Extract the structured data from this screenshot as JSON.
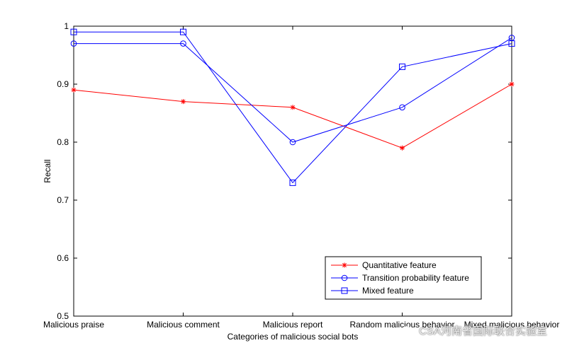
{
  "chart_data": {
    "type": "line",
    "title": "",
    "xlabel": "Categories of malicious social bots",
    "ylabel": "Recall",
    "categories": [
      "Malicious praise",
      "Malicious comment",
      "Malicious report",
      "Random malicious behavior",
      "Mixed malicious behavior"
    ],
    "ylim": [
      0.5,
      1
    ],
    "yticks": [
      "0.5",
      "0.6",
      "0.7",
      "0.8",
      "0.9",
      "1"
    ],
    "grid": false,
    "legend_position": "bottom-right",
    "series": [
      {
        "name": "Quantitative feature",
        "values": [
          0.89,
          0.87,
          0.86,
          0.79,
          0.9
        ],
        "color": "#ff0000",
        "marker": "star"
      },
      {
        "name": "Transition probability feature",
        "values": [
          0.97,
          0.97,
          0.8,
          0.86,
          0.98
        ],
        "color": "#0000ff",
        "marker": "circle"
      },
      {
        "name": "Mixed feature",
        "values": [
          0.99,
          0.99,
          0.73,
          0.93,
          0.97
        ],
        "color": "#0000ff",
        "marker": "square"
      }
    ]
  },
  "watermark": {
    "text": "CSA河南省国际联合实验室",
    "icon": "wechat-icon"
  }
}
